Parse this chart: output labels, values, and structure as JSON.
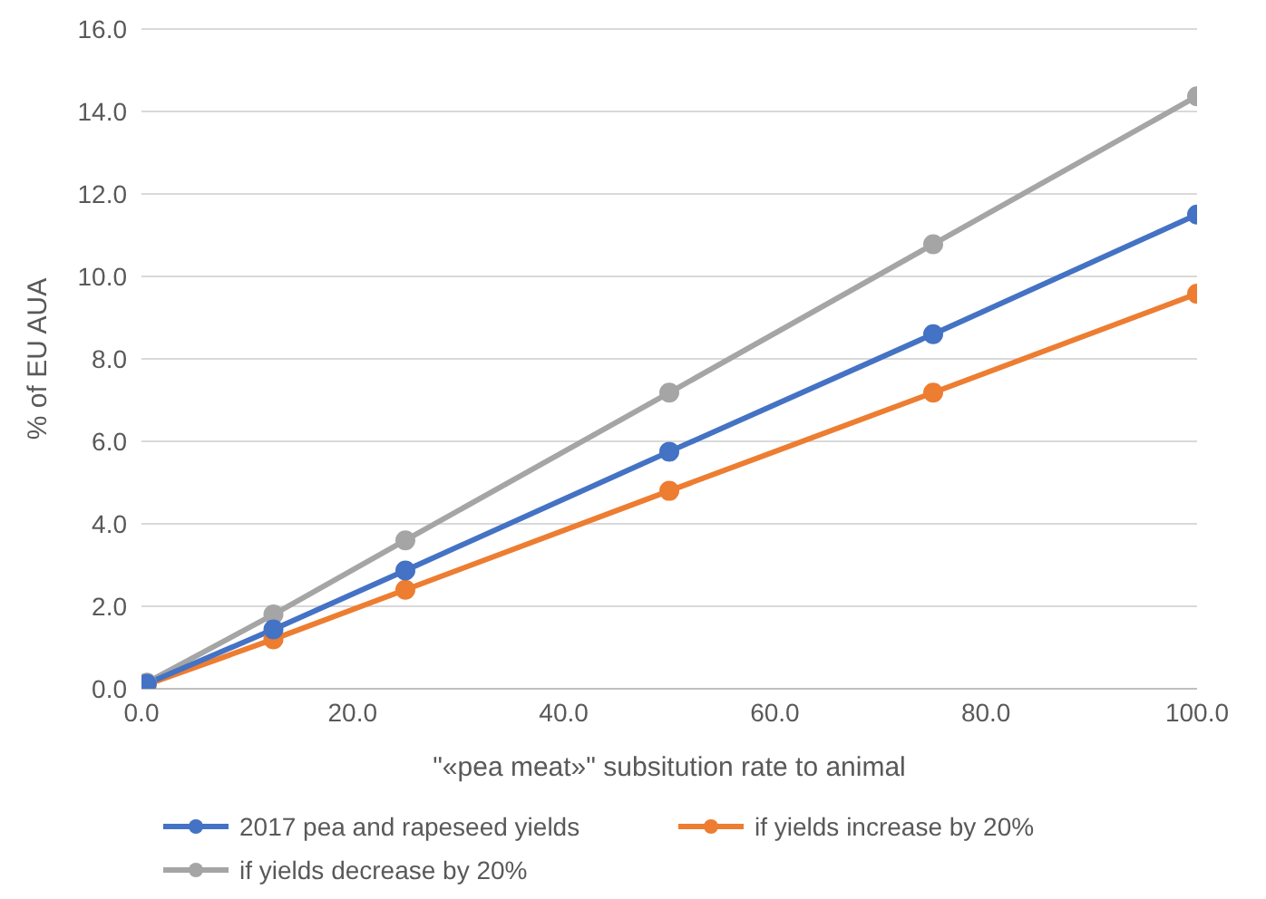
{
  "chart_data": {
    "type": "line",
    "xlabel": "\"«pea meat»\" subsitution rate to animal",
    "ylabel": "% of EU AUA",
    "x": [
      0.5,
      12.5,
      25,
      50,
      75,
      100
    ],
    "series": [
      {
        "name": "2017 pea and rapeseed yields",
        "color": "#4472c4",
        "values": [
          0.12,
          1.44,
          2.87,
          5.75,
          8.6,
          11.5
        ]
      },
      {
        "name": "if yields increase by 20%",
        "color": "#ed7d31",
        "values": [
          0.1,
          1.2,
          2.4,
          4.8,
          7.18,
          9.58
        ]
      },
      {
        "name": "if yields decrease by 20%",
        "color": "#a5a5a5",
        "values": [
          0.15,
          1.8,
          3.6,
          7.18,
          10.78,
          14.37
        ]
      }
    ],
    "xlim": [
      0,
      100
    ],
    "xticks": [
      {
        "value": 0,
        "label": "0.0"
      },
      {
        "value": 20,
        "label": "20.0"
      },
      {
        "value": 40,
        "label": "40.0"
      },
      {
        "value": 60,
        "label": "60.0"
      },
      {
        "value": 80,
        "label": "80.0"
      },
      {
        "value": 100,
        "label": "100.0"
      }
    ],
    "ylim": [
      0,
      16
    ],
    "yticks": [
      {
        "value": 0,
        "label": "0.0"
      },
      {
        "value": 2,
        "label": "2.0"
      },
      {
        "value": 4,
        "label": "4.0"
      },
      {
        "value": 6,
        "label": "6.0"
      },
      {
        "value": 8,
        "label": "8.0"
      },
      {
        "value": 10,
        "label": "10.0"
      },
      {
        "value": 12,
        "label": "12.0"
      },
      {
        "value": 14,
        "label": "14.0"
      },
      {
        "value": 16,
        "label": "16.0"
      }
    ],
    "grid": "y",
    "legend": "bottom",
    "marker": "circle",
    "line_style": "solid"
  }
}
